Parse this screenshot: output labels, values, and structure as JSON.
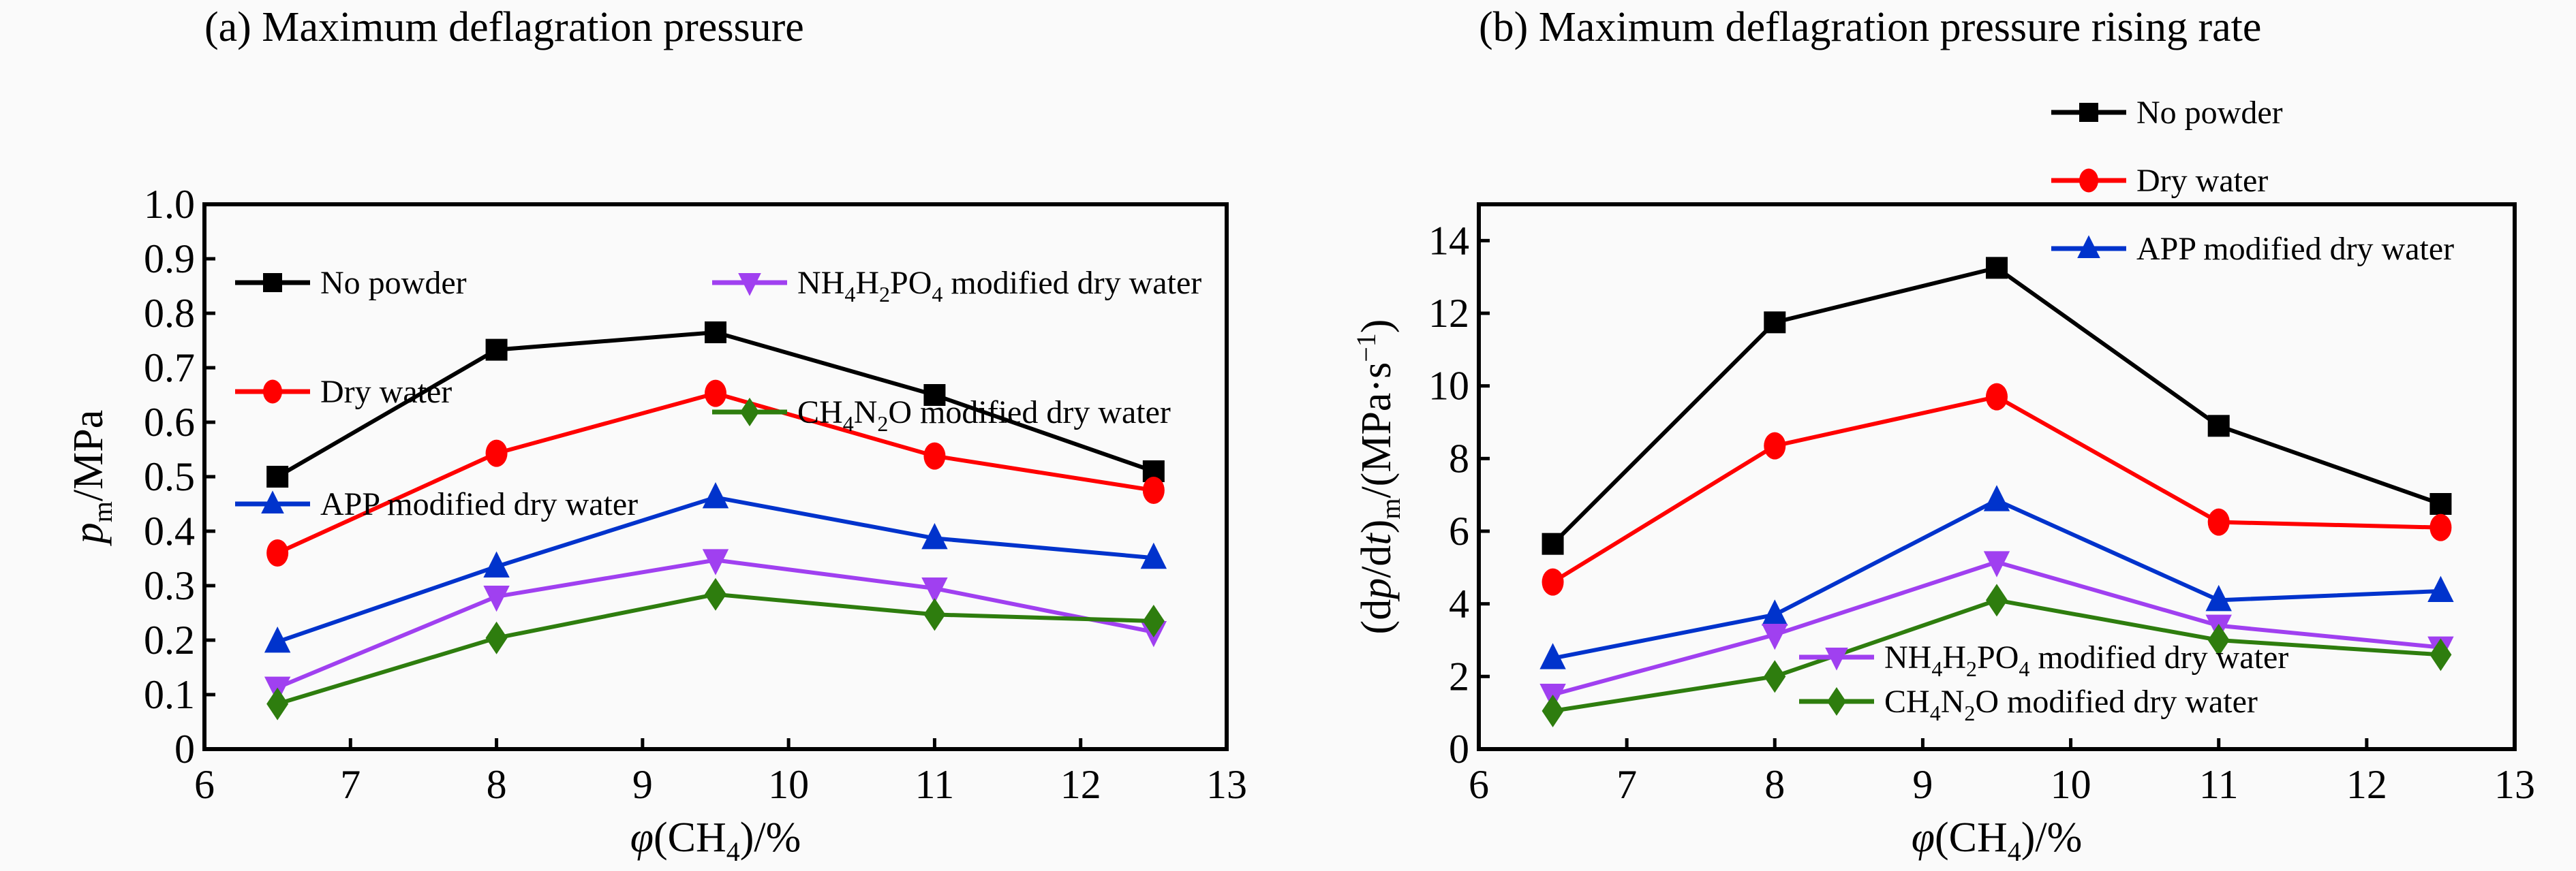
{
  "chart_data": [
    {
      "type": "line",
      "title": "(a) Maximum deflagration pressure",
      "xlabel": "φ(CH4)/%",
      "ylabel": "p_m/MPa",
      "xlim": [
        6,
        13
      ],
      "ylim": [
        0,
        1.0
      ],
      "xticks": [
        "6",
        "7",
        "8",
        "9",
        "10",
        "11",
        "12",
        "13"
      ],
      "yticks": [
        "0",
        "0.1",
        "0.2",
        "0.3",
        "0.4",
        "0.5",
        "0.6",
        "0.7",
        "0.8",
        "0.9",
        "1.0"
      ],
      "x": [
        6.5,
        8,
        9.5,
        11,
        12.5
      ],
      "legend_placement": "top-left (two columns)",
      "series": [
        {
          "name": "No powder",
          "color": "#000000",
          "marker": "square",
          "values": [
            0.5,
            0.733,
            0.765,
            0.65,
            0.51
          ]
        },
        {
          "name": "Dry water",
          "color": "#ff0000",
          "marker": "circle",
          "values": [
            0.36,
            0.543,
            0.653,
            0.538,
            0.475
          ]
        },
        {
          "name": "APP modified dry water",
          "color": "#0033cc",
          "marker": "triangle-up",
          "values": [
            0.197,
            0.335,
            0.462,
            0.387,
            0.351
          ]
        },
        {
          "name": "NH4H2PO4 modified dry water",
          "color": "#a040f0",
          "marker": "triangle-down",
          "values": [
            0.113,
            0.28,
            0.347,
            0.295,
            0.215
          ]
        },
        {
          "name": "CH4N2O modified dry water",
          "color": "#2e7d0e",
          "marker": "diamond",
          "values": [
            0.083,
            0.204,
            0.284,
            0.247,
            0.235
          ]
        }
      ]
    },
    {
      "type": "line",
      "title": "(b) Maximum deflagration pressure rising rate",
      "xlabel": "φ(CH4)/%",
      "ylabel": "(dp/dt)_m/(MPa·s⁻¹)",
      "xlim": [
        6,
        13
      ],
      "ylim": [
        0,
        15
      ],
      "xticks": [
        "6",
        "7",
        "8",
        "9",
        "10",
        "11",
        "12",
        "13"
      ],
      "yticks": [
        "0",
        "2",
        "4",
        "6",
        "8",
        "10",
        "12",
        "14"
      ],
      "x": [
        6.5,
        8,
        9.5,
        11,
        12.5
      ],
      "legend_placement": "top-right and bottom-center (split)",
      "series": [
        {
          "name": "No powder",
          "color": "#000000",
          "marker": "square",
          "values": [
            5.65,
            11.75,
            13.25,
            8.9,
            6.75
          ]
        },
        {
          "name": "Dry water",
          "color": "#ff0000",
          "marker": "circle",
          "values": [
            4.6,
            8.35,
            9.7,
            6.25,
            6.1
          ]
        },
        {
          "name": "APP modified dry water",
          "color": "#0033cc",
          "marker": "triangle-up",
          "values": [
            2.5,
            3.7,
            6.85,
            4.1,
            4.35
          ]
        },
        {
          "name": "NH4H2PO4 modified dry water",
          "color": "#a040f0",
          "marker": "triangle-down",
          "values": [
            1.5,
            3.15,
            5.15,
            3.4,
            2.8
          ]
        },
        {
          "name": "CH4N2O modified dry water",
          "color": "#2e7d0e",
          "marker": "diamond",
          "values": [
            1.05,
            2.0,
            4.1,
            3.0,
            2.6
          ]
        }
      ]
    }
  ]
}
